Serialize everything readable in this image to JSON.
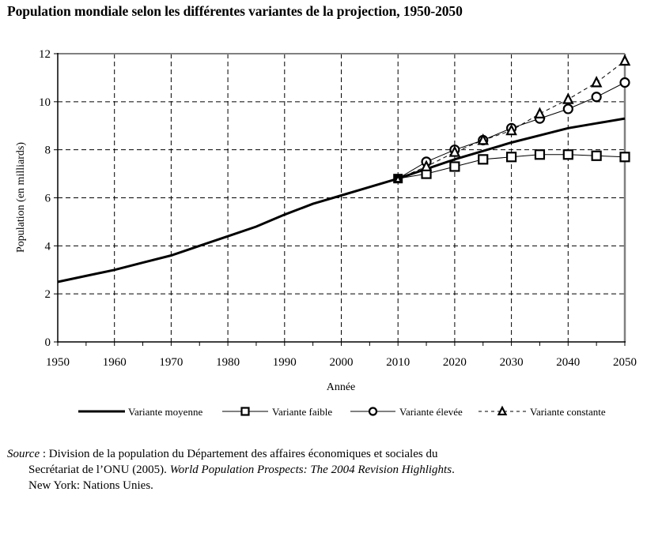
{
  "chart_data": {
    "type": "line",
    "title": "Population mondiale selon les différentes variantes de la projection, 1950-2050",
    "xlabel": "Année",
    "ylabel": "Population (en milliards)",
    "xlim": [
      1950,
      2050
    ],
    "ylim": [
      0,
      12
    ],
    "x_ticks": [
      1950,
      1960,
      1970,
      1980,
      1990,
      2000,
      2010,
      2020,
      2030,
      2040,
      2050
    ],
    "x_tick_labels": [
      "1950",
      "1960",
      "1970",
      "1980",
      "1990",
      "2000",
      "2010",
      "2020",
      "2030",
      "2040",
      "2050"
    ],
    "y_ticks": [
      0,
      2,
      4,
      6,
      8,
      10,
      12
    ],
    "y_tick_labels": [
      "0",
      "2",
      "4",
      "6",
      "8",
      "10",
      "12"
    ],
    "grid": true,
    "legend_position": "bottom",
    "series": [
      {
        "name": "Variante moyenne",
        "style": "solid-thick",
        "marker": "none",
        "x": [
          1950,
          1955,
          1960,
          1965,
          1970,
          1975,
          1980,
          1985,
          1990,
          1995,
          2000,
          2005,
          2010,
          2015,
          2020,
          2025,
          2030,
          2035,
          2040,
          2045,
          2050
        ],
        "values": [
          2.5,
          2.75,
          3.0,
          3.3,
          3.6,
          4.0,
          4.4,
          4.8,
          5.3,
          5.75,
          6.1,
          6.45,
          6.8,
          7.2,
          7.6,
          7.95,
          8.3,
          8.6,
          8.9,
          9.1,
          9.3
        ]
      },
      {
        "name": "Variante faible",
        "style": "solid-thin",
        "marker": "square",
        "x": [
          2010,
          2015,
          2020,
          2025,
          2030,
          2035,
          2040,
          2045,
          2050
        ],
        "values": [
          6.8,
          7.0,
          7.3,
          7.6,
          7.7,
          7.8,
          7.8,
          7.75,
          7.7
        ]
      },
      {
        "name": "Variante élevée",
        "style": "solid-thin",
        "marker": "circle",
        "x": [
          2010,
          2015,
          2020,
          2025,
          2030,
          2035,
          2040,
          2045,
          2050
        ],
        "values": [
          6.8,
          7.5,
          8.0,
          8.4,
          8.9,
          9.3,
          9.7,
          10.2,
          10.8
        ]
      },
      {
        "name": "Variante constante",
        "style": "dashed",
        "marker": "triangle",
        "x": [
          2010,
          2015,
          2020,
          2025,
          2030,
          2035,
          2040,
          2045,
          2050
        ],
        "values": [
          6.8,
          7.3,
          7.9,
          8.4,
          8.8,
          9.5,
          10.1,
          10.8,
          11.7
        ]
      }
    ]
  },
  "source": {
    "label": "Source",
    "line1": " : Division de la population du Département des affaires économiques et sociales du",
    "line2_plain": "Secrétariat de l’ONU (2005). ",
    "line2_italic": "World Population Prospects: The 2004 Revision Highlights",
    "line2_end": ".",
    "line3": "New York: Nations Unies."
  },
  "colors": {
    "line": "#000000",
    "frame_top_right": "#808080",
    "background": "#ffffff"
  }
}
